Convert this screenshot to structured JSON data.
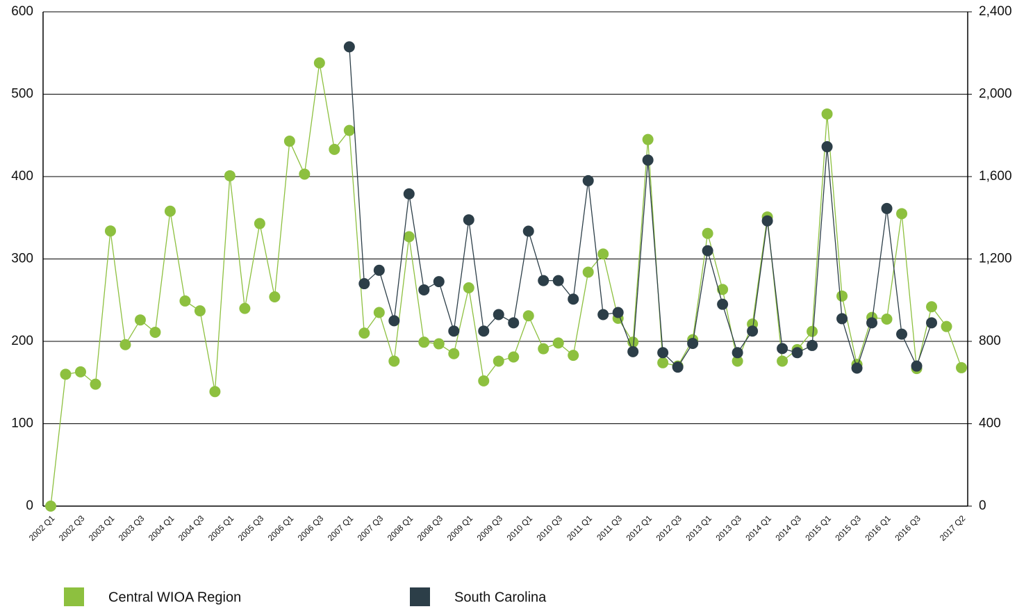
{
  "chart_data": {
    "type": "line",
    "categories": [
      "2002 Q1",
      null,
      "2002 Q3",
      null,
      "2003 Q1",
      null,
      "2003 Q3",
      null,
      "2004 Q1",
      null,
      "2004 Q3",
      null,
      "2005 Q1",
      null,
      "2005 Q3",
      null,
      "2006 Q1",
      null,
      "2006 Q3",
      null,
      "2007 Q1",
      null,
      "2007 Q3",
      null,
      "2008 Q1",
      null,
      "2008 Q3",
      null,
      "2009 Q1",
      null,
      "2009 Q3",
      null,
      "2010 Q1",
      null,
      "2010 Q3",
      null,
      "2011 Q1",
      null,
      "2011 Q3",
      null,
      "2012 Q1",
      null,
      "2012 Q3",
      null,
      "2013 Q1",
      null,
      "2013 Q3",
      null,
      "2014 Q1",
      null,
      "2014 Q3",
      null,
      "2015 Q1",
      null,
      "2015 Q3",
      null,
      "2016 Q1",
      null,
      "2016 Q3",
      null,
      null,
      "2017 Q2"
    ],
    "series": [
      {
        "name": "Central WIOA Region",
        "color": "#8dc03f",
        "axis": "y",
        "values": [
          0,
          160,
          163,
          148,
          334,
          196,
          226,
          211,
          358,
          249,
          237,
          139,
          401,
          240,
          343,
          254,
          443,
          403,
          538,
          433,
          456,
          210,
          235,
          176,
          327,
          199,
          197,
          185,
          265,
          152,
          176,
          181,
          231,
          191,
          198,
          183,
          284,
          306,
          228,
          199,
          445,
          174,
          170,
          202,
          331,
          263,
          176,
          221,
          351,
          176,
          190,
          212,
          476,
          255,
          172,
          229,
          227,
          355,
          167,
          242,
          218,
          168
        ]
      },
      {
        "name": "South Carolina",
        "color": "#2c3e48",
        "axis": "y2",
        "values": [
          null,
          null,
          null,
          null,
          null,
          null,
          null,
          null,
          null,
          null,
          null,
          null,
          null,
          null,
          null,
          null,
          null,
          null,
          null,
          null,
          2230,
          1080,
          1145,
          900,
          1516,
          1050,
          1090,
          850,
          1390,
          850,
          930,
          890,
          1335,
          1095,
          1095,
          1005,
          1580,
          930,
          940,
          750,
          1680,
          745,
          675,
          790,
          1240,
          980,
          745,
          850,
          1385,
          765,
          745,
          780,
          1745,
          910,
          670,
          890,
          1445,
          835,
          680,
          890,
          null,
          null
        ]
      }
    ],
    "ylim": [
      0,
      600
    ],
    "yticks": [
      0,
      100,
      200,
      300,
      400,
      500,
      600
    ],
    "y2lim": [
      0,
      2400
    ],
    "y2ticks": [
      0,
      400,
      800,
      {
        "value": 1200,
        "label": "1,200"
      },
      {
        "value": 1600,
        "label": "1,600"
      },
      {
        "value": 2000,
        "label": "2,000"
      },
      {
        "value": 2400,
        "label": "2,400"
      }
    ],
    "grid": true,
    "legend": "bottom"
  }
}
